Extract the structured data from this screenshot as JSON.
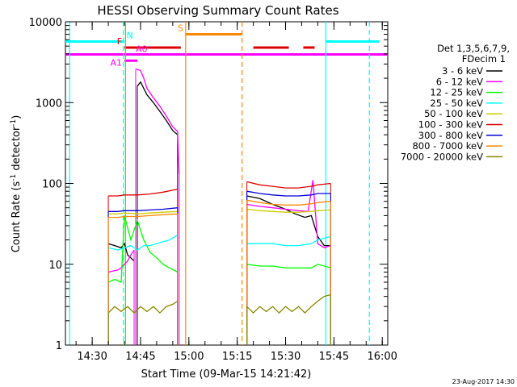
{
  "chart_data": {
    "type": "line",
    "title": "HESSI Observing Summary Count Rates",
    "xlabel": "Start Time (09-Mar-15 14:21:42)",
    "ylabel": "Count Rate (s",
    "ylabel_sup": "-1",
    "ylabel_mid": " detector",
    "ylabel_sup2": "-1",
    "ylabel_end": ")",
    "yscale": "log",
    "ylim": [
      1,
      10000
    ],
    "xlim": [
      "14:21:42",
      "16:01:42"
    ],
    "x_ticks": [
      "14:30",
      "14:45",
      "15:00",
      "15:15",
      "15:30",
      "15:45",
      "16:00"
    ],
    "y_ticks": [
      "1",
      "10",
      "100",
      "1000",
      "10000"
    ],
    "legend_header": [
      "Det 1,3,5,6,7,9,",
      "FDecim 1"
    ],
    "legend_placement": "right",
    "footer": "23-Aug-2017 14:30",
    "series": [
      {
        "name": "3 - 6 keV",
        "color": "#000000",
        "segments": [
          [
            [
              "14:35:00",
              18
            ],
            [
              "14:37:00",
              17
            ],
            [
              "14:39:00",
              16
            ],
            [
              "14:40:00",
              18
            ],
            [
              "14:41:00",
              13
            ],
            [
              "14:42:00",
              12
            ],
            [
              "14:43:00",
              11
            ]
          ],
          [
            [
              "14:44:00",
              1600
            ],
            [
              "14:45:00",
              1800
            ],
            [
              "14:47:00",
              1250
            ],
            [
              "14:49:00",
              1000
            ],
            [
              "14:51:00",
              780
            ],
            [
              "14:53:00",
              600
            ],
            [
              "14:55:00",
              450
            ],
            [
              "14:56:30",
              400
            ]
          ],
          [
            [
              "15:18:00",
              70
            ],
            [
              "15:22:00",
              65
            ],
            [
              "15:26:00",
              55
            ],
            [
              "15:30:00",
              48
            ],
            [
              "15:33:00",
              42
            ],
            [
              "15:36:00",
              38
            ],
            [
              "15:38:00",
              40
            ],
            [
              "15:40:00",
              22
            ],
            [
              "15:42:00",
              17
            ],
            [
              "15:44:00",
              17
            ]
          ]
        ]
      },
      {
        "name": "6 - 12 keV",
        "color": "#ff00ff",
        "segments": [
          [
            [
              "14:35:00",
              8
            ],
            [
              "14:38:00",
              8.5
            ],
            [
              "14:39:00",
              9
            ],
            [
              "14:40:00",
              10
            ],
            [
              "14:41:00",
              11
            ],
            [
              "14:42:00",
              13
            ],
            [
              "14:43:00",
              15
            ]
          ],
          [
            [
              "14:43:30",
              2600
            ],
            [
              "14:45:00",
              2500
            ],
            [
              "14:46:00",
              2000
            ],
            [
              "14:47:00",
              1500
            ],
            [
              "14:49:00",
              1150
            ],
            [
              "14:51:00",
              900
            ],
            [
              "14:53:00",
              680
            ],
            [
              "14:55:00",
              500
            ],
            [
              "14:56:30",
              440
            ],
            [
              "14:57:00",
              130
            ]
          ],
          [
            [
              "15:18:00",
              55
            ],
            [
              "15:22:00",
              52
            ],
            [
              "15:26:00",
              50
            ],
            [
              "15:30:00",
              48
            ],
            [
              "15:34:00",
              46
            ],
            [
              "15:37:00",
              45
            ],
            [
              "15:38:30",
              110
            ],
            [
              "15:40:00",
              18
            ],
            [
              "15:42:00",
              16
            ],
            [
              "15:44:00",
              17
            ]
          ]
        ]
      },
      {
        "name": "12 - 25 keV",
        "color": "#00ff00",
        "segments": [
          [
            [
              "14:35:00",
              6
            ],
            [
              "14:37:00",
              6.5
            ],
            [
              "14:39:00",
              6
            ],
            [
              "14:40:00",
              40
            ],
            [
              "14:42:00",
              20
            ],
            [
              "14:44:00",
              35
            ],
            [
              "14:46:00",
              20
            ],
            [
              "14:48:00",
              14
            ],
            [
              "14:50:00",
              12
            ],
            [
              "14:52:00",
              10
            ],
            [
              "14:54:00",
              9
            ],
            [
              "14:56:30",
              8
            ]
          ],
          [
            [
              "15:18:00",
              10
            ],
            [
              "15:22:00",
              9.5
            ],
            [
              "15:26:00",
              9.5
            ],
            [
              "15:30:00",
              9
            ],
            [
              "15:34:00",
              9
            ],
            [
              "15:38:00",
              9
            ],
            [
              "15:40:00",
              10
            ],
            [
              "15:44:00",
              9
            ]
          ]
        ]
      },
      {
        "name": "25 - 50 keV",
        "color": "#00ffff",
        "segments": [
          [
            [
              "14:35:00",
              16
            ],
            [
              "14:38:00",
              15
            ],
            [
              "14:40:00",
              16
            ],
            [
              "14:42:00",
              17
            ],
            [
              "14:44:00",
              15
            ],
            [
              "14:46:00",
              17
            ],
            [
              "14:48:00",
              17
            ],
            [
              "14:50:00",
              18
            ],
            [
              "14:52:00",
              19
            ],
            [
              "14:54:00",
              20
            ],
            [
              "14:56:30",
              23
            ]
          ],
          [
            [
              "15:18:00",
              18
            ],
            [
              "15:22:00",
              18
            ],
            [
              "15:26:00",
              18
            ],
            [
              "15:30:00",
              17
            ],
            [
              "15:34:00",
              17
            ],
            [
              "15:38:00",
              18
            ],
            [
              "15:40:00",
              20
            ],
            [
              "15:44:00",
              22
            ]
          ]
        ]
      },
      {
        "name": "50 - 100 keV",
        "color": "#cccc00",
        "segments": [
          [
            [
              "14:35:00",
              42
            ],
            [
              "14:38:00",
              42
            ],
            [
              "14:40:00",
              43
            ],
            [
              "14:44:00",
              42
            ],
            [
              "14:48:00",
              43
            ],
            [
              "14:52:00",
              44
            ],
            [
              "14:56:30",
              45
            ]
          ],
          [
            [
              "15:18:00",
              48
            ],
            [
              "15:22:00",
              46
            ],
            [
              "15:26:00",
              45
            ],
            [
              "15:30:00",
              44
            ],
            [
              "15:34:00",
              44
            ],
            [
              "15:38:00",
              45
            ],
            [
              "15:40:00",
              46
            ],
            [
              "15:44:00",
              47
            ]
          ]
        ]
      },
      {
        "name": "100 - 300 keV",
        "color": "#dd0000",
        "segments": [
          [
            [
              "14:35:00",
              70
            ],
            [
              "14:38:00",
              70
            ],
            [
              "14:40:00",
              72
            ],
            [
              "14:44:00",
              72
            ],
            [
              "14:48:00",
              74
            ],
            [
              "14:52:00",
              78
            ],
            [
              "14:56:30",
              85
            ]
          ],
          [
            [
              "15:18:00",
              105
            ],
            [
              "15:22:00",
              96
            ],
            [
              "15:26:00",
              92
            ],
            [
              "15:30:00",
              88
            ],
            [
              "15:34:00",
              88
            ],
            [
              "15:38:00",
              92
            ],
            [
              "15:40:00",
              96
            ],
            [
              "15:44:00",
              100
            ]
          ]
        ]
      },
      {
        "name": "300 - 800 keV",
        "color": "#0000dd",
        "segments": [
          [
            [
              "14:35:00",
              45
            ],
            [
              "14:38:00",
              45
            ],
            [
              "14:40:00",
              46
            ],
            [
              "14:44:00",
              46
            ],
            [
              "14:48:00",
              47
            ],
            [
              "14:52:00",
              48
            ],
            [
              "14:56:30",
              50
            ]
          ],
          [
            [
              "15:18:00",
              80
            ],
            [
              "15:22:00",
              75
            ],
            [
              "15:26:00",
              72
            ],
            [
              "15:30:00",
              70
            ],
            [
              "15:34:00",
              70
            ],
            [
              "15:38:00",
              72
            ],
            [
              "15:40:00",
              75
            ],
            [
              "15:44:00",
              75
            ]
          ]
        ]
      },
      {
        "name": "800 - 7000 keV",
        "color": "#ff8800",
        "segments": [
          [
            [
              "14:35:00",
              38
            ],
            [
              "14:38:00",
              38
            ],
            [
              "14:40:00",
              39
            ],
            [
              "14:44:00",
              39
            ],
            [
              "14:48:00",
              40
            ],
            [
              "14:52:00",
              41
            ],
            [
              "14:56:30",
              42
            ]
          ],
          [
            [
              "15:18:00",
              62
            ],
            [
              "15:22:00",
              58
            ],
            [
              "15:26:00",
              55
            ],
            [
              "15:30:00",
              54
            ],
            [
              "15:34:00",
              54
            ],
            [
              "15:38:00",
              56
            ],
            [
              "15:40:00",
              58
            ],
            [
              "15:44:00",
              60
            ]
          ]
        ]
      },
      {
        "name": "7000 - 20000 keV",
        "color": "#888800",
        "segments": [
          [
            [
              "14:35:00",
              2.5
            ],
            [
              "14:37:00",
              3
            ],
            [
              "14:39:00",
              2.6
            ],
            [
              "14:41:00",
              3
            ],
            [
              "14:43:00",
              2.5
            ],
            [
              "14:45:00",
              3
            ],
            [
              "14:47:00",
              2.6
            ],
            [
              "14:49:00",
              3
            ],
            [
              "14:51:00",
              2.5
            ],
            [
              "14:53:00",
              3
            ],
            [
              "14:55:00",
              3.2
            ],
            [
              "14:56:30",
              3.5
            ]
          ],
          [
            [
              "15:18:00",
              3
            ],
            [
              "15:20:00",
              2.5
            ],
            [
              "15:22:00",
              3
            ],
            [
              "15:24:00",
              2.6
            ],
            [
              "15:26:00",
              3
            ],
            [
              "15:28:00",
              2.5
            ],
            [
              "15:30:00",
              3
            ],
            [
              "15:32:00",
              2.6
            ],
            [
              "15:34:00",
              3
            ],
            [
              "15:36:00",
              2.5
            ],
            [
              "15:38:00",
              3
            ],
            [
              "15:40:00",
              3.5
            ],
            [
              "15:42:00",
              4
            ],
            [
              "15:44:00",
              4.2
            ]
          ]
        ]
      }
    ],
    "flags": [
      {
        "label": "N",
        "color": "#00ffff",
        "y": 5700,
        "label_side": "right",
        "segments": [
          [
            "14:21:42",
            "14:40:00"
          ],
          [
            "15:42:30",
            "15:59:00"
          ]
        ]
      },
      {
        "label": "S",
        "color": "#ff8800",
        "y": 7000,
        "label_side": "left",
        "segments": [
          [
            "14:59:00",
            "15:16:30"
          ]
        ]
      },
      {
        "label": "F",
        "color": "#dd0000",
        "y": 4800,
        "label_side": "left",
        "segments": [
          [
            "14:40:00",
            "14:57:30"
          ],
          [
            "15:20:00",
            "15:31:00"
          ],
          [
            "15:35:30",
            "15:39:00"
          ]
        ]
      },
      {
        "label": "A0",
        "color": "#ff00ff",
        "y": 3950,
        "label_side": "right",
        "segments": [
          [
            "14:21:42",
            "16:01:42"
          ]
        ]
      },
      {
        "label": "A1",
        "color": "#ff00ff",
        "y": 3300,
        "label_side": "left",
        "segments": [
          [
            "14:40:00",
            "14:44:00"
          ]
        ]
      }
    ],
    "vlines": [
      {
        "time": "14:23:00",
        "color": "#00ffff",
        "style": "solid"
      },
      {
        "time": "14:39:40",
        "color": "#00ffff",
        "style": "dashed"
      },
      {
        "time": "14:40:20",
        "color": "#00ff00",
        "style": "solid"
      },
      {
        "time": "14:59:00",
        "color": "#ff8800",
        "style": "solid"
      },
      {
        "time": "15:16:30",
        "color": "#ff8800",
        "style": "dashed"
      },
      {
        "time": "15:42:30",
        "color": "#00ffff",
        "style": "solid"
      },
      {
        "time": "15:56:00",
        "color": "#00ffff",
        "style": "dashed"
      }
    ]
  }
}
